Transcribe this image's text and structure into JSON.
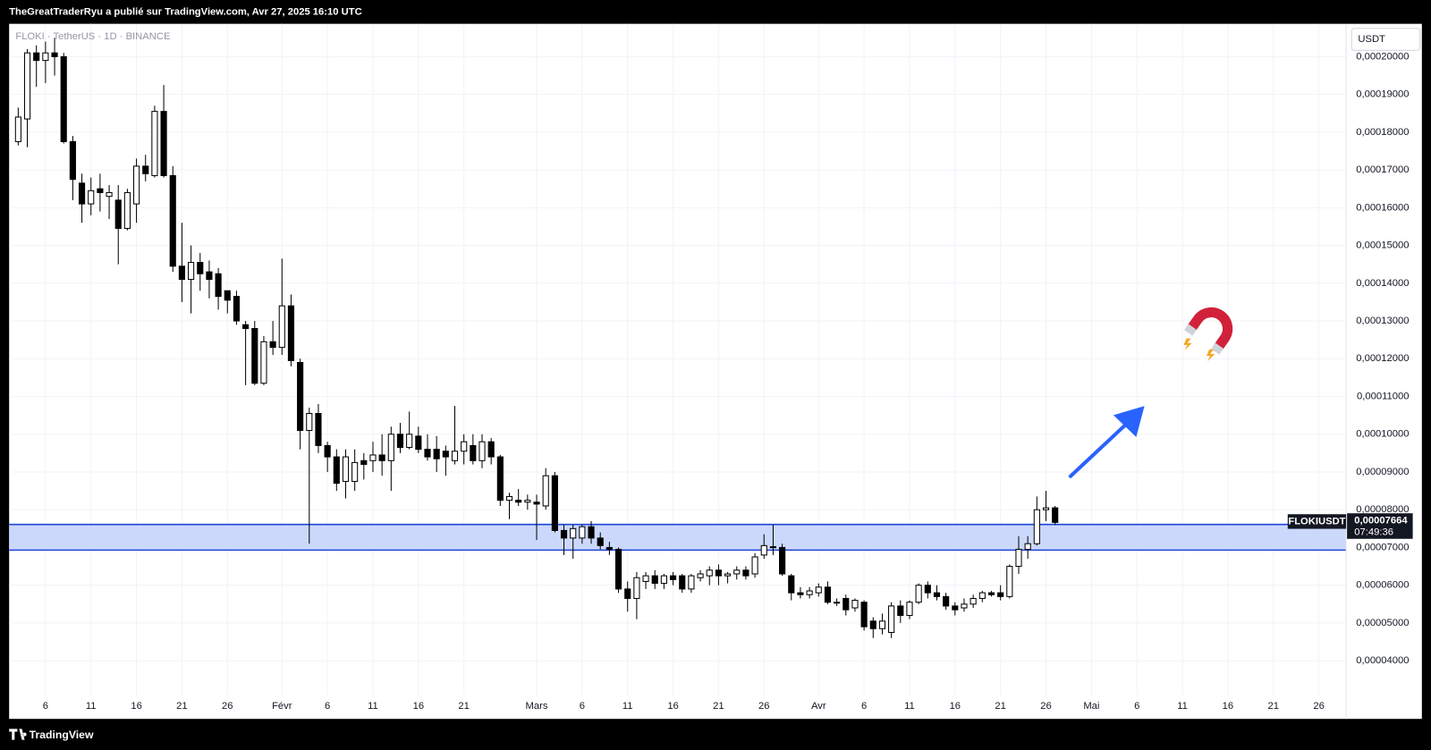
{
  "header": {
    "text": "TheGreatTraderRyu a publié sur TradingView.com, Avr 27, 2025 16:10 UTC"
  },
  "footer": {
    "brand": "TradingView"
  },
  "chart_data": {
    "type": "candlestick",
    "symbol_label": "FLOKI · TetherUS · 1D · BINANCE",
    "currency": "USDT",
    "countdown": "07:49:36",
    "up_color": "#ffffff",
    "down_color": "#000000",
    "wick_color": "#000000",
    "grid": true,
    "xlim": [
      "2025-01-02",
      "2025-05-29"
    ],
    "ylim": [
      2.46e-05,
      0.0002087
    ],
    "xticks": [
      {
        "value": "2025-01-06",
        "label": "6"
      },
      {
        "value": "2025-01-11",
        "label": "11"
      },
      {
        "value": "2025-01-16",
        "label": "16"
      },
      {
        "value": "2025-01-21",
        "label": "21"
      },
      {
        "value": "2025-01-26",
        "label": "26"
      },
      {
        "value": "2025-02-01",
        "label": "Févr"
      },
      {
        "value": "2025-02-06",
        "label": "6"
      },
      {
        "value": "2025-02-11",
        "label": "11"
      },
      {
        "value": "2025-02-16",
        "label": "16"
      },
      {
        "value": "2025-02-21",
        "label": "21"
      },
      {
        "value": "2025-03-01",
        "label": "Mars"
      },
      {
        "value": "2025-03-06",
        "label": "6"
      },
      {
        "value": "2025-03-11",
        "label": "11"
      },
      {
        "value": "2025-03-16",
        "label": "16"
      },
      {
        "value": "2025-03-21",
        "label": "21"
      },
      {
        "value": "2025-03-26",
        "label": "26"
      },
      {
        "value": "2025-04-01",
        "label": "Avr"
      },
      {
        "value": "2025-04-06",
        "label": "6"
      },
      {
        "value": "2025-04-11",
        "label": "11"
      },
      {
        "value": "2025-04-16",
        "label": "16"
      },
      {
        "value": "2025-04-21",
        "label": "21"
      },
      {
        "value": "2025-04-26",
        "label": "26"
      },
      {
        "value": "2025-05-01",
        "label": "Mai"
      },
      {
        "value": "2025-05-06",
        "label": "6"
      },
      {
        "value": "2025-05-11",
        "label": "11"
      },
      {
        "value": "2025-05-16",
        "label": "16"
      },
      {
        "value": "2025-05-21",
        "label": "21"
      },
      {
        "value": "2025-05-26",
        "label": "26"
      }
    ],
    "yticks": [
      {
        "value": 4e-05,
        "label": "0,00004000"
      },
      {
        "value": 5e-05,
        "label": "0,00005000"
      },
      {
        "value": 6e-05,
        "label": "0,00006000"
      },
      {
        "value": 7e-05,
        "label": "0,00007000"
      },
      {
        "value": 8e-05,
        "label": "0,00008000"
      },
      {
        "value": 9e-05,
        "label": "0,00009000"
      },
      {
        "value": 0.0001,
        "label": "0,00010000"
      },
      {
        "value": 0.00011,
        "label": "0,00011000"
      },
      {
        "value": 0.00012,
        "label": "0,00012000"
      },
      {
        "value": 0.00013,
        "label": "0,00013000"
      },
      {
        "value": 0.00014,
        "label": "0,00014000"
      },
      {
        "value": 0.00015,
        "label": "0,00015000"
      },
      {
        "value": 0.00016,
        "label": "0,00016000"
      },
      {
        "value": 0.00017,
        "label": "0,00017000"
      },
      {
        "value": 0.00018,
        "label": "0,00018000"
      },
      {
        "value": 0.00019,
        "label": "0,00019000"
      },
      {
        "value": 0.0002,
        "label": "0,00020000"
      }
    ],
    "zone": {
      "top": 7.61e-05,
      "bottom": 6.93e-05,
      "color": "#c6d4fb",
      "border_color": "#1f45d8"
    },
    "last_price": {
      "value": 7.664e-05,
      "label": "0,00007664"
    },
    "x": [
      "2025-01-03",
      "2025-01-04",
      "2025-01-05",
      "2025-01-06",
      "2025-01-07",
      "2025-01-08",
      "2025-01-09",
      "2025-01-10",
      "2025-01-11",
      "2025-01-12",
      "2025-01-13",
      "2025-01-14",
      "2025-01-15",
      "2025-01-16",
      "2025-01-17",
      "2025-01-18",
      "2025-01-19",
      "2025-01-20",
      "2025-01-21",
      "2025-01-22",
      "2025-01-23",
      "2025-01-24",
      "2025-01-25",
      "2025-01-26",
      "2025-01-27",
      "2025-01-28",
      "2025-01-29",
      "2025-01-30",
      "2025-01-31",
      "2025-02-01",
      "2025-02-02",
      "2025-02-03",
      "2025-02-04",
      "2025-02-05",
      "2025-02-06",
      "2025-02-07",
      "2025-02-08",
      "2025-02-09",
      "2025-02-10",
      "2025-02-11",
      "2025-02-12",
      "2025-02-13",
      "2025-02-14",
      "2025-02-15",
      "2025-02-16",
      "2025-02-17",
      "2025-02-18",
      "2025-02-19",
      "2025-02-20",
      "2025-02-21",
      "2025-02-22",
      "2025-02-23",
      "2025-02-24",
      "2025-02-25",
      "2025-02-26",
      "2025-02-27",
      "2025-02-28",
      "2025-03-01",
      "2025-03-02",
      "2025-03-03",
      "2025-03-04",
      "2025-03-05",
      "2025-03-06",
      "2025-03-07",
      "2025-03-08",
      "2025-03-09",
      "2025-03-10",
      "2025-03-11",
      "2025-03-12",
      "2025-03-13",
      "2025-03-14",
      "2025-03-15",
      "2025-03-16",
      "2025-03-17",
      "2025-03-18",
      "2025-03-19",
      "2025-03-20",
      "2025-03-21",
      "2025-03-22",
      "2025-03-23",
      "2025-03-24",
      "2025-03-25",
      "2025-03-26",
      "2025-03-27",
      "2025-03-28",
      "2025-03-29",
      "2025-03-30",
      "2025-03-31",
      "2025-04-01",
      "2025-04-02",
      "2025-04-03",
      "2025-04-04",
      "2025-04-05",
      "2025-04-06",
      "2025-04-07",
      "2025-04-08",
      "2025-04-09",
      "2025-04-10",
      "2025-04-11",
      "2025-04-12",
      "2025-04-13",
      "2025-04-14",
      "2025-04-15",
      "2025-04-16",
      "2025-04-17",
      "2025-04-18",
      "2025-04-19",
      "2025-04-20",
      "2025-04-21",
      "2025-04-22",
      "2025-04-23",
      "2025-04-24",
      "2025-04-25",
      "2025-04-26",
      "2025-04-27"
    ],
    "series": [
      {
        "name": "FLOKIUSDT",
        "open": [
          0.0001775,
          0.0001835,
          0.000201,
          0.000199,
          0.000201,
          0.0002,
          0.0001775,
          0.0001665,
          0.000161,
          0.000165,
          0.000163,
          0.000162,
          0.0001545,
          0.000161,
          0.000171,
          0.0001685,
          0.0001855,
          0.0001685,
          0.0001445,
          0.000141,
          0.0001455,
          0.000143,
          0.0001425,
          0.000138,
          0.0001365,
          0.000129,
          0.000128,
          0.0001135,
          0.0001245,
          0.000123,
          0.000134,
          0.000119,
          0.000101,
          0.0001055,
          9.7e-05,
          9.4e-05,
          8.75e-05,
          8.75e-05,
          9.3e-05,
          9.3e-05,
          9.45e-05,
          9.3e-05,
          0.0001,
          9.65e-05,
          9.95e-05,
          9.6e-05,
          9.6e-05,
          9.55e-05,
          9.3e-05,
          9.55e-05,
          9.7e-05,
          9.3e-05,
          9.8e-05,
          9.4e-05,
          8.25e-05,
          8.25e-05,
          8.2e-05,
          8.2e-05,
          8.1e-05,
          8.9e-05,
          7.45e-05,
          7.25e-05,
          7.25e-05,
          7.55e-05,
          7.25e-05,
          7e-05,
          6.95e-05,
          5.9e-05,
          5.65e-05,
          6.1e-05,
          6.25e-05,
          6.05e-05,
          6.25e-05,
          6.25e-05,
          5.9e-05,
          6.2e-05,
          6.25e-05,
          6.4e-05,
          6.25e-05,
          6.3e-05,
          6.4e-05,
          6.3e-05,
          6.8e-05,
          7e-05,
          7e-05,
          6.25e-05,
          5.8e-05,
          5.75e-05,
          5.8e-05,
          5.95e-05,
          5.55e-05,
          5.65e-05,
          5.4e-05,
          5.55e-05,
          5.05e-05,
          4.85e-05,
          4.75e-05,
          5.45e-05,
          5.2e-05,
          5.55e-05,
          6e-05,
          5.8e-05,
          5.7e-05,
          5.45e-05,
          5.4e-05,
          5.5e-05,
          5.65e-05,
          5.8e-05,
          5.8e-05,
          5.7e-05,
          6.5e-05,
          6.95e-05,
          7.1e-05,
          8e-05,
          8.05e-05
        ],
        "high": [
          0.0001865,
          0.000202,
          0.000203,
          0.000204,
          0.000205,
          0.000201,
          0.000179,
          0.000169,
          0.000168,
          0.000169,
          0.000166,
          0.000166,
          0.000165,
          0.000173,
          0.000174,
          0.000187,
          0.0001925,
          0.000171,
          0.000156,
          0.00015,
          0.000148,
          0.000146,
          0.000144,
          0.000138,
          0.000138,
          0.00013,
          0.00013,
          0.000126,
          0.00013,
          0.0001465,
          0.000137,
          0.00012,
          0.000107,
          0.000108,
          9.8e-05,
          9.6e-05,
          9.6e-05,
          9.6e-05,
          9.5e-05,
          9.8e-05,
          0.0001,
          0.000102,
          0.000103,
          0.000106,
          0.000102,
          0.0001,
          9.95e-05,
          9.7e-05,
          0.0001075,
          0.0001,
          0.0001,
          0.0001,
          9.9e-05,
          9.45e-05,
          8.45e-05,
          8.55e-05,
          8.4e-05,
          8.4e-05,
          9.1e-05,
          9e-05,
          7.6e-05,
          7.6e-05,
          7.6e-05,
          7.7e-05,
          7.4e-05,
          7.15e-05,
          7e-05,
          6.1e-05,
          6.35e-05,
          6.35e-05,
          6.4e-05,
          6.3e-05,
          6.35e-05,
          6.3e-05,
          6.3e-05,
          6.4e-05,
          6.5e-05,
          6.55e-05,
          6.35e-05,
          6.5e-05,
          6.5e-05,
          6.85e-05,
          7.35e-05,
          7.6e-05,
          7.1e-05,
          6.3e-05,
          5.95e-05,
          5.95e-05,
          6.05e-05,
          6.1e-05,
          5.65e-05,
          5.75e-05,
          5.65e-05,
          5.6e-05,
          5.15e-05,
          5.25e-05,
          5.55e-05,
          5.6e-05,
          5.6e-05,
          6.05e-05,
          6.1e-05,
          6e-05,
          5.8e-05,
          5.55e-05,
          5.65e-05,
          5.75e-05,
          5.85e-05,
          5.85e-05,
          6e-05,
          6.55e-05,
          7.3e-05,
          7.3e-05,
          8.35e-05,
          8.5e-05,
          8.1e-05
        ],
        "low": [
          0.0001765,
          0.000176,
          0.000192,
          0.000193,
          0.000195,
          0.000177,
          0.000162,
          0.000156,
          0.000158,
          0.000159,
          0.000157,
          0.000145,
          0.000154,
          0.000156,
          0.000167,
          0.000168,
          0.000168,
          0.000143,
          0.000135,
          0.000132,
          0.000138,
          0.000136,
          0.000133,
          0.000132,
          0.000129,
          0.000113,
          0.000113,
          0.000113,
          0.000121,
          0.000121,
          0.000118,
          9.6e-05,
          7.1e-05,
          9.5e-05,
          9e-05,
          8.5e-05,
          8.3e-05,
          8.5e-05,
          8.8e-05,
          9e-05,
          8.9e-05,
          8.5e-05,
          9.5e-05,
          9.6e-05,
          9.5e-05,
          9.3e-05,
          9e-05,
          8.9e-05,
          9.2e-05,
          9.2e-05,
          9.2e-05,
          9.1e-05,
          9.2e-05,
          8.1e-05,
          7.75e-05,
          8.1e-05,
          8e-05,
          7.2e-05,
          8e-05,
          7.4e-05,
          6.8e-05,
          6.7e-05,
          7.1e-05,
          7.1e-05,
          6.95e-05,
          6.8e-05,
          5.8e-05,
          5.3e-05,
          5.1e-05,
          5.9e-05,
          5.9e-05,
          5.9e-05,
          6e-05,
          5.8e-05,
          5.8e-05,
          6.1e-05,
          6e-05,
          6e-05,
          6.05e-05,
          6.15e-05,
          6.15e-05,
          6.2e-05,
          6.7e-05,
          6.8e-05,
          6.25e-05,
          5.6e-05,
          5.65e-05,
          5.65e-05,
          5.7e-05,
          5.5e-05,
          5.45e-05,
          5.2e-05,
          5.3e-05,
          4.8e-05,
          4.6e-05,
          4.7e-05,
          4.6e-05,
          5e-05,
          5.1e-05,
          5.5e-05,
          5.65e-05,
          5.6e-05,
          5.35e-05,
          5.2e-05,
          5.3e-05,
          5.4e-05,
          5.55e-05,
          5.7e-05,
          5.6e-05,
          5.65e-05,
          6.3e-05,
          6.7e-05,
          7.05e-05,
          7.7e-05,
          7.6e-05
        ],
        "close": [
          0.000184,
          0.000201,
          0.000199,
          0.000201,
          0.0002,
          0.0001775,
          0.0001675,
          0.000161,
          0.0001645,
          0.000164,
          0.000164,
          0.0001545,
          0.000164,
          0.000171,
          0.000169,
          0.0001855,
          0.0001685,
          0.0001445,
          0.000141,
          0.0001455,
          0.0001425,
          0.000141,
          0.0001365,
          0.0001355,
          0.00013,
          0.000128,
          0.0001135,
          0.0001245,
          0.000123,
          0.000134,
          0.0001195,
          0.000101,
          0.0001055,
          9.7e-05,
          9.4e-05,
          8.7e-05,
          9.4e-05,
          9.25e-05,
          9.2e-05,
          9.45e-05,
          9.3e-05,
          0.0001,
          9.65e-05,
          0.0001,
          9.6e-05,
          9.4e-05,
          9.35e-05,
          9.4e-05,
          9.55e-05,
          9.8e-05,
          9.3e-05,
          9.8e-05,
          9.4e-05,
          8.25e-05,
          8.35e-05,
          8.2e-05,
          8.25e-05,
          8.15e-05,
          8.9e-05,
          7.45e-05,
          7.25e-05,
          7.5e-05,
          7.55e-05,
          7.25e-05,
          7.05e-05,
          6.95e-05,
          5.9e-05,
          5.65e-05,
          6.2e-05,
          6.25e-05,
          6.05e-05,
          6.25e-05,
          6.15e-05,
          5.9e-05,
          6.25e-05,
          6.3e-05,
          6.4e-05,
          6.25e-05,
          6.3e-05,
          6.4e-05,
          6.25e-05,
          6.75e-05,
          7.05e-05,
          7.02e-05,
          6.3e-05,
          5.8e-05,
          5.75e-05,
          5.85e-05,
          5.95e-05,
          5.55e-05,
          5.55e-05,
          5.35e-05,
          5.6e-05,
          4.9e-05,
          4.85e-05,
          5.05e-05,
          5.45e-05,
          5.2e-05,
          5.55e-05,
          6e-05,
          5.8e-05,
          5.7e-05,
          5.45e-05,
          5.35e-05,
          5.5e-05,
          5.65e-05,
          5.8e-05,
          5.75e-05,
          5.7e-05,
          6.5e-05,
          6.95e-05,
          7.1e-05,
          8e-05,
          8.05e-05,
          7.664e-05
        ]
      }
    ]
  }
}
